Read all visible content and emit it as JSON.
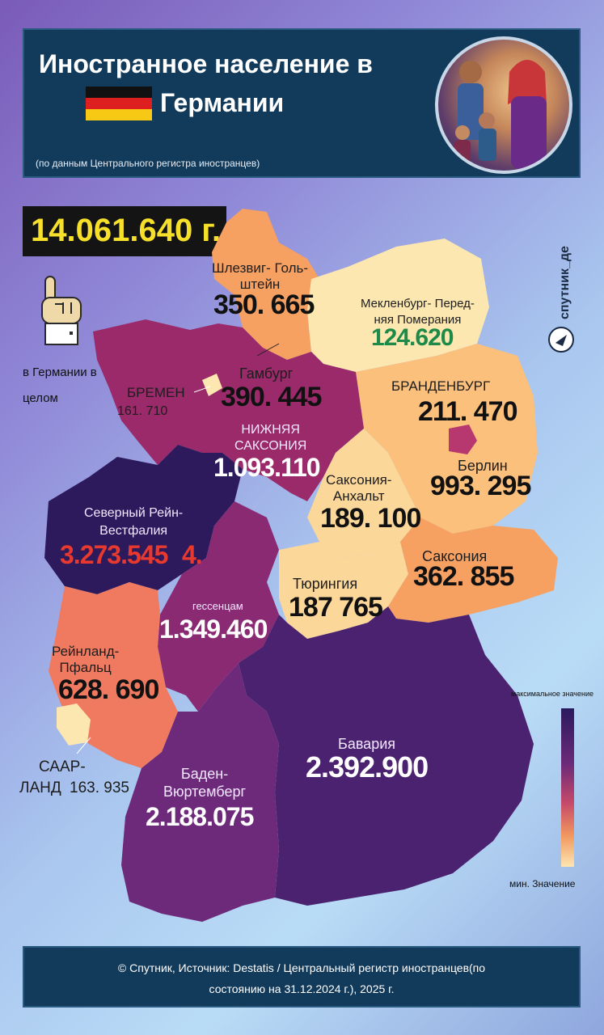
{
  "header": {
    "title_line1": "Иностранное население в",
    "title_line2": "Германии",
    "subtitle": "(по данным Центрального регистра иностранцев)"
  },
  "total": {
    "value": "14.061.640 г.",
    "label": "в Германии в целом"
  },
  "brand": "спутник_де",
  "regions": {
    "schleswig": {
      "name": "Шлезвиг- Голь-\nштейн",
      "value": "350. 665"
    },
    "mecklenburg": {
      "name": "Мекленбург- Перед-\nняя Померания",
      "value": "124.620"
    },
    "hamburg": {
      "name": "Гамбург",
      "value": "390. 445"
    },
    "bremen": {
      "name": "БРЕМЕН",
      "value": "161. 710"
    },
    "brandenburg": {
      "name": "БРАНДЕНБУРГ",
      "value": "211. 470"
    },
    "niedersachsen": {
      "name": "НИЖНЯЯ\nСАКСОНИЯ",
      "value": "1.093.110"
    },
    "berlin": {
      "name": "Берлин",
      "value": "993. 295"
    },
    "sachsen_anhalt": {
      "name": "Саксония-\nАнхальт",
      "value": "189. 100"
    },
    "nrw": {
      "name": "Северный Рейн-\nВестфалия",
      "value": "3.273.545",
      "suffix": "4."
    },
    "sachsen": {
      "name": "Саксония",
      "value": "362. 855"
    },
    "thueringen": {
      "name": "Тюрингия",
      "value": "187 765"
    },
    "hessen": {
      "name": "гессенцам",
      "value": "1.349.460"
    },
    "rlp": {
      "name": "Рейнланд-\nПфальц",
      "value": "628. 690"
    },
    "saarland": {
      "name": "СААР-",
      "name2": "ЛАНД",
      "value": "163. 935"
    },
    "bayern": {
      "name": "Бавария",
      "value": "2.392.900"
    },
    "bw": {
      "name": "Баден-\nВюртемберг",
      "value": "2.188.075"
    }
  },
  "legend": {
    "max_label": "максимальное значение",
    "min_label": "мин. Значение",
    "colors": [
      "#2b1a5e",
      "#6c2a78",
      "#c64a6a",
      "#f1965e",
      "#fde6b2"
    ]
  },
  "footer": {
    "line1": "© Спутник, Источник: Destatis / Центральный регистр иностранцев(по",
    "line2": "состоянию на 31.12.2024 г.), 2025 г."
  },
  "colors": {
    "header_bg": "#123a5a",
    "total_text": "#f7e02a",
    "nrw_value": "#e8392f",
    "mecklenburg_value": "#1e8a4a"
  }
}
